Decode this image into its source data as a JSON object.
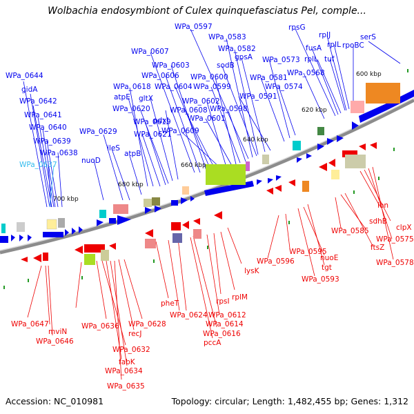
{
  "title": "Wolbachia endosymbiont of Culex quinquefasciatus Pel, comple...",
  "footer": {
    "accession": "Accession: NC_010981",
    "summary": "Topology: circular; Length: 1,482,455 bp; Genes: 1,312"
  },
  "colors": {
    "forward": "#0000ee",
    "reverse": "#ee0000",
    "highlight": "#33bbee",
    "backbone": "#808080"
  },
  "kbp_markers": [
    "600 kbp",
    "620 kbp",
    "640 kbp",
    "660 kbp",
    "680 kbp",
    "700 kbp"
  ],
  "forward_genes": [
    "WPa_0644",
    "gidA",
    "WPa_0642",
    "WPa_0641",
    "WPa_0640",
    "WPa_0639",
    "WPa_0638",
    "WPa_0637",
    "nuoD",
    "WPa_0629",
    "ileS",
    "atpB",
    "WPa_0621",
    "WPa_0619",
    "WPa_0620",
    "atpE",
    "WPa_0618",
    "gltX",
    "pdxJ",
    "WPa_0607",
    "WPa_0606",
    "WPa_0603",
    "WPa_0604",
    "WPa_0608",
    "WPa_0609",
    "WPa_0602",
    "WPa_0601",
    "WPa_0600",
    "WPa_0599",
    "WPa_0598",
    "WPa_0597",
    "WPa_0583",
    "WPa_0582",
    "sodB",
    "gpsA",
    "WPa_0591",
    "WPa_0581",
    "WPa_0573",
    "WPa_0574",
    "WPa_0568",
    "rpsG",
    "fusA",
    "rplL",
    "tuf",
    "rpIJ",
    "rpIL",
    "rpoBC",
    "serS"
  ],
  "reverse_genes": [
    "WPa_0647",
    "mviN",
    "WPa_0646",
    "WPa_0636",
    "WPa_0632",
    "fabK",
    "WPa_0634",
    "WPa_0635",
    "recJ",
    "WPa_0628",
    "pheT",
    "WPa_0624",
    "WPa_0616",
    "pccA",
    "WPa_0612",
    "WPa_0614",
    "rpsI",
    "rplM",
    "lysK",
    "WPa_0596",
    "WPa_0595",
    "nuoE",
    "tgt",
    "WPa_0593",
    "WPa_0585",
    "sdhB",
    "ftsZ",
    "lon",
    "clpX",
    "WPa_0575",
    "WPa_0578"
  ]
}
